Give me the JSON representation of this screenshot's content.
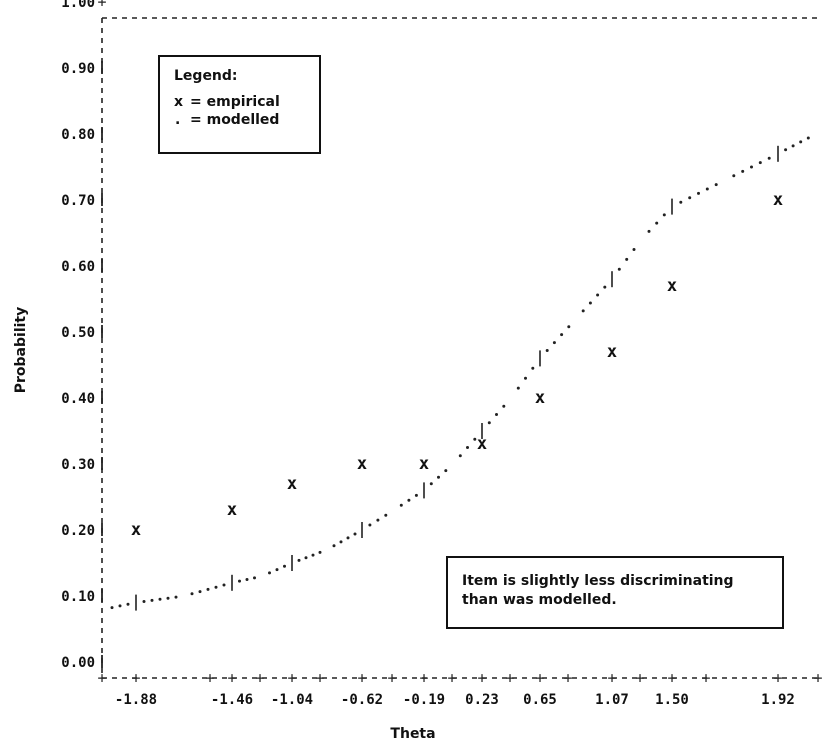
{
  "chart_data": {
    "type": "line",
    "xlabel": "Theta",
    "ylabel": "Probability",
    "xlim": [
      -2.02,
      2.07
    ],
    "ylim": [
      0.0,
      1.0
    ],
    "x_ticks": [
      "-1.88",
      "-1.46",
      "-1.04",
      "-0.62",
      "-0.19",
      "0.23",
      "0.65",
      "1.07",
      "1.50",
      "1.92"
    ],
    "y_ticks": [
      "0.00",
      "0.10",
      "0.20",
      "0.30",
      "0.40",
      "0.50",
      "0.60",
      "0.70",
      "0.80",
      "0.90",
      "1.00"
    ],
    "series": [
      {
        "name": "empirical",
        "marker": "x",
        "x": [
          -1.88,
          -1.46,
          -1.04,
          -0.62,
          -0.19,
          0.23,
          0.65,
          1.07,
          1.5,
          1.92
        ],
        "y": [
          0.2,
          0.23,
          0.27,
          0.3,
          0.3,
          0.33,
          0.4,
          0.47,
          0.57,
          0.7
        ]
      },
      {
        "name": "modelled",
        "marker": ".",
        "x": [
          -2.02,
          -1.88,
          -1.67,
          -1.46,
          -1.25,
          -1.04,
          -0.83,
          -0.62,
          -0.4,
          -0.19,
          0.02,
          0.23,
          0.44,
          0.65,
          0.86,
          1.07,
          1.28,
          1.5,
          1.71,
          1.92,
          2.07
        ],
        "y": [
          0.08,
          0.09,
          0.1,
          0.12,
          0.13,
          0.15,
          0.17,
          0.2,
          0.23,
          0.26,
          0.3,
          0.35,
          0.4,
          0.46,
          0.52,
          0.58,
          0.64,
          0.69,
          0.73,
          0.77,
          0.8
        ]
      }
    ],
    "legend": {
      "title": "Legend:",
      "entries": [
        {
          "symbol": "x",
          "label": "= empirical"
        },
        {
          "symbol": ".",
          "label": "= modelled"
        }
      ],
      "placement": "top-left"
    },
    "annotation": [
      "Item is slightly less discriminating",
      "than was modelled."
    ],
    "grid": false
  }
}
